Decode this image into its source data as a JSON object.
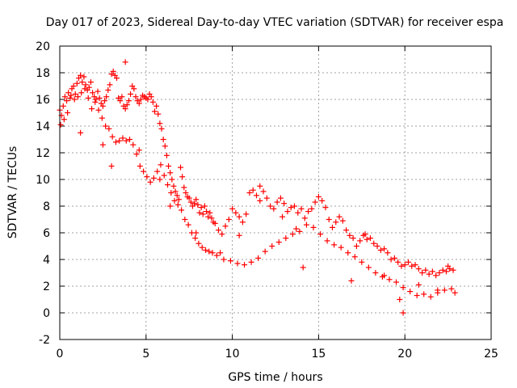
{
  "chart_data": {
    "type": "scatter",
    "title": "Day 017 of 2023, Sidereal Day-to-day VTEC variation (SDTVAR) for receiver espa",
    "xlabel": "GPS time / hours",
    "ylabel": "SDTVAR / TECUs",
    "xlim": [
      0,
      25
    ],
    "ylim": [
      -2,
      20
    ],
    "xticks": [
      0,
      5,
      10,
      15,
      20,
      25
    ],
    "yticks": [
      -2,
      0,
      2,
      4,
      6,
      8,
      10,
      12,
      14,
      16,
      18,
      20
    ],
    "grid": true,
    "marker": "+",
    "series_color": "#ff0000",
    "series": [
      {
        "name": "SDTVAR",
        "x": [
          0.0,
          0.1,
          0.2,
          0.3,
          0.4,
          0.5,
          0.6,
          0.7,
          0.8,
          0.9,
          1.0,
          1.1,
          1.2,
          1.3,
          1.4,
          1.5,
          1.6,
          1.7,
          1.8,
          1.9,
          2.0,
          2.1,
          2.2,
          2.3,
          2.4,
          2.5,
          2.6,
          2.7,
          2.8,
          2.9,
          3.0,
          3.1,
          3.2,
          3.3,
          3.4,
          3.5,
          3.6,
          3.7,
          3.8,
          3.9,
          4.0,
          4.1,
          4.2,
          4.3,
          4.4,
          4.5,
          4.6,
          4.7,
          4.8,
          4.9,
          5.0,
          5.1,
          5.2,
          5.3,
          5.4,
          5.5,
          5.6,
          5.7,
          5.8,
          5.9,
          6.0,
          6.1,
          6.2,
          6.3,
          6.4,
          6.5,
          6.6,
          6.7,
          6.8,
          6.9,
          7.0,
          7.1,
          7.2,
          7.3,
          7.4,
          7.5,
          7.6,
          7.7,
          7.8,
          7.9,
          8.0,
          8.1,
          8.2,
          8.3,
          8.4,
          8.5,
          8.6,
          8.7,
          8.8,
          8.9,
          9.0,
          9.2,
          9.4,
          9.6,
          9.8,
          10.0,
          10.2,
          10.4,
          10.6,
          10.8,
          11.0,
          11.2,
          11.4,
          11.6,
          11.8,
          12.0,
          12.2,
          12.4,
          12.6,
          12.8,
          13.0,
          13.2,
          13.4,
          13.6,
          13.8,
          14.0,
          14.2,
          14.4,
          14.6,
          14.8,
          15.0,
          15.2,
          15.4,
          15.6,
          15.8,
          16.0,
          16.2,
          16.4,
          16.6,
          16.8,
          17.0,
          17.2,
          17.4,
          17.6,
          17.8,
          18.0,
          18.2,
          18.4,
          18.6,
          18.8,
          19.0,
          19.2,
          19.4,
          19.6,
          19.8,
          20.0,
          20.2,
          20.4,
          20.6,
          20.8,
          21.0,
          21.2,
          21.4,
          21.6,
          21.8,
          22.0,
          22.2,
          22.4,
          22.6,
          22.8,
          0.05,
          0.25,
          0.45,
          0.65,
          0.85,
          1.05,
          1.25,
          1.45,
          1.65,
          1.85,
          2.05,
          2.25,
          2.45,
          2.65,
          2.85,
          3.05,
          3.25,
          3.45,
          3.65,
          3.85,
          4.05,
          4.25,
          4.45,
          4.65,
          4.85,
          5.05,
          5.25,
          5.45,
          5.65,
          5.85,
          6.05,
          6.25,
          6.45,
          6.65,
          6.85,
          7.05,
          7.25,
          7.45,
          7.65,
          7.85,
          8.05,
          8.25,
          8.45,
          8.65,
          8.85,
          9.1,
          9.5,
          9.9,
          10.3,
          10.7,
          11.1,
          11.5,
          11.9,
          12.3,
          12.7,
          13.1,
          13.5,
          13.9,
          14.3,
          14.7,
          15.1,
          15.5,
          15.9,
          16.3,
          16.7,
          17.1,
          17.5,
          17.9,
          18.3,
          18.7,
          19.1,
          19.5,
          19.9,
          20.3,
          20.7,
          21.1,
          21.5,
          21.9,
          22.3,
          22.7,
          3.8,
          1.2,
          2.5,
          3.0,
          4.6,
          5.8,
          6.4,
          7.9,
          9.3,
          10.4,
          11.6,
          12.9,
          13.7,
          14.1,
          16.9,
          17.7,
          18.8,
          19.7,
          19.9,
          20.8,
          21.9,
          22.5,
          22.9
        ],
        "y": [
          15.2,
          14.8,
          15.5,
          16.2,
          15.9,
          16.5,
          16.1,
          16.8,
          17.0,
          16.4,
          17.2,
          17.6,
          17.8,
          17.3,
          17.7,
          17.1,
          16.7,
          16.9,
          17.3,
          16.5,
          16.2,
          16.0,
          16.6,
          16.1,
          15.7,
          15.5,
          15.9,
          16.2,
          16.7,
          17.1,
          17.9,
          18.1,
          17.8,
          17.6,
          16.1,
          15.9,
          16.2,
          15.5,
          15.3,
          15.6,
          15.9,
          16.4,
          17.0,
          16.8,
          16.2,
          15.9,
          15.7,
          16.0,
          16.3,
          16.2,
          16.1,
          16.0,
          16.4,
          16.2,
          15.8,
          15.1,
          15.5,
          14.9,
          14.2,
          13.8,
          13.0,
          12.5,
          11.8,
          11.0,
          10.5,
          10.0,
          9.5,
          9.1,
          8.8,
          8.5,
          10.9,
          10.2,
          9.4,
          9.0,
          8.7,
          8.6,
          8.3,
          8.0,
          8.2,
          8.5,
          8.1,
          7.5,
          7.9,
          7.4,
          8.0,
          7.6,
          7.2,
          7.5,
          7.1,
          6.8,
          6.7,
          6.2,
          5.9,
          6.5,
          7.0,
          7.8,
          7.5,
          7.2,
          6.8,
          7.4,
          9.0,
          9.2,
          8.8,
          8.4,
          9.1,
          8.6,
          8.0,
          7.8,
          8.3,
          8.6,
          8.2,
          7.6,
          7.9,
          8.0,
          7.5,
          7.8,
          7.1,
          7.6,
          7.8,
          8.3,
          8.7,
          8.4,
          7.9,
          7.0,
          6.4,
          6.8,
          7.2,
          6.9,
          6.2,
          5.8,
          5.6,
          5.0,
          5.4,
          5.8,
          5.5,
          5.6,
          5.2,
          5.0,
          4.7,
          4.8,
          4.5,
          4.0,
          4.1,
          3.8,
          3.5,
          3.6,
          3.8,
          3.5,
          3.6,
          3.3,
          3.0,
          3.2,
          2.9,
          3.1,
          2.8,
          3.0,
          3.2,
          3.1,
          3.3,
          3.2,
          14.1,
          14.5,
          15.0,
          16.3,
          16.0,
          16.2,
          16.5,
          16.8,
          16.1,
          15.3,
          15.8,
          15.2,
          14.6,
          14.0,
          13.8,
          13.2,
          12.8,
          12.9,
          13.1,
          12.9,
          13.0,
          12.6,
          11.9,
          11.0,
          10.6,
          10.2,
          9.8,
          10.1,
          10.6,
          11.1,
          10.3,
          9.6,
          9.0,
          8.4,
          8.1,
          7.7,
          7.0,
          6.6,
          6.0,
          5.6,
          5.2,
          4.9,
          4.7,
          4.6,
          4.5,
          4.3,
          4.0,
          3.9,
          3.7,
          3.6,
          3.8,
          4.1,
          4.6,
          5.0,
          5.3,
          5.6,
          5.9,
          6.1,
          6.6,
          6.4,
          5.9,
          5.4,
          5.1,
          4.9,
          4.5,
          4.2,
          3.8,
          3.4,
          3.0,
          2.7,
          2.5,
          2.3,
          1.9,
          1.6,
          1.3,
          1.4,
          1.2,
          1.5,
          1.7,
          1.8,
          18.8,
          13.5,
          12.6,
          11.0,
          12.2,
          10.0,
          8.0,
          6.0,
          4.5,
          5.8,
          9.5,
          7.2,
          6.3,
          3.4,
          2.4,
          5.9,
          2.8,
          1.0,
          0.0,
          2.1,
          1.7,
          3.5,
          1.5
        ]
      }
    ]
  }
}
